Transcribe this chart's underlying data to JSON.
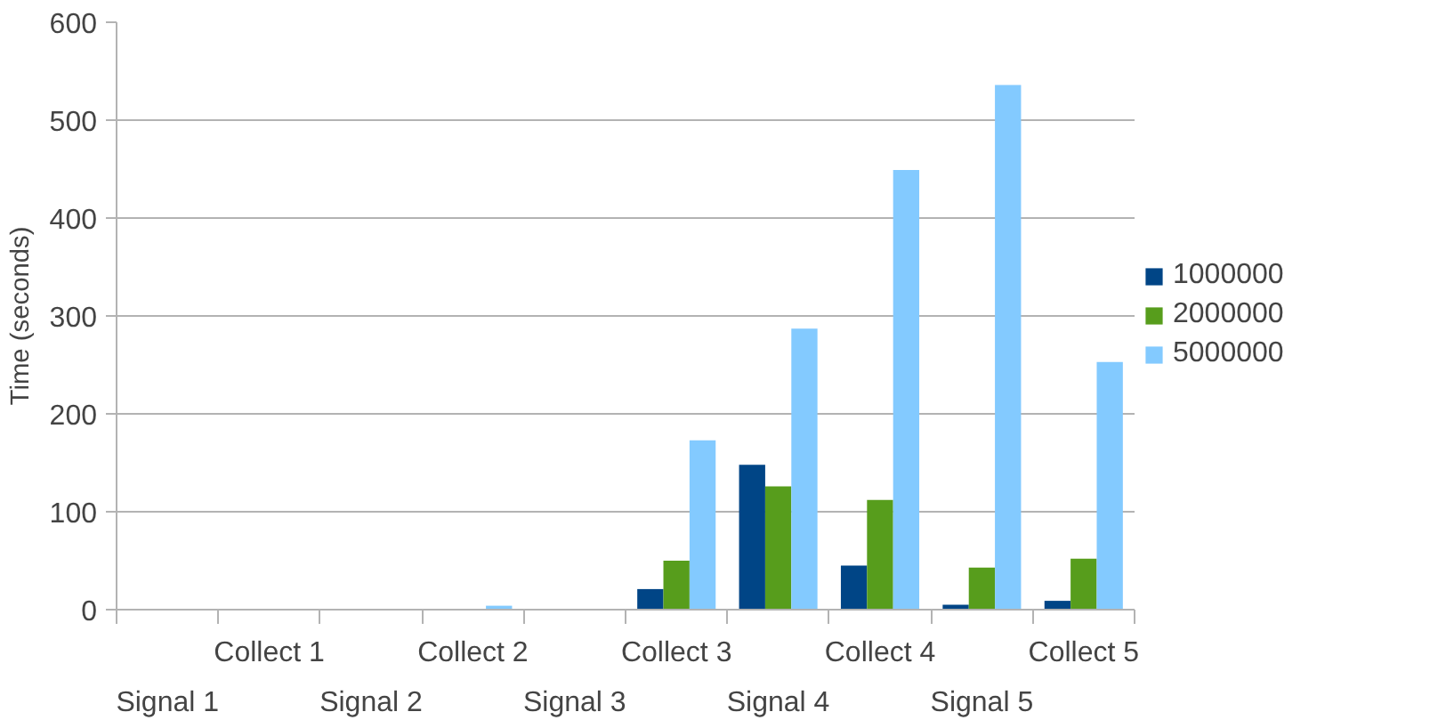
{
  "chart_data": {
    "type": "bar",
    "ylabel": "Time (seconds)",
    "categories": [
      "Signal 1",
      "Collect 1",
      "Signal 2",
      "Collect 2",
      "Signal 3",
      "Collect 3",
      "Signal 4",
      "Collect 4",
      "Signal 5",
      "Collect 5"
    ],
    "series": [
      {
        "name": "1000000",
        "color": "#004586",
        "values": [
          0,
          0,
          0,
          null,
          0,
          21,
          148,
          45,
          5,
          9
        ]
      },
      {
        "name": "2000000",
        "color": "#579d1c",
        "values": [
          0,
          0,
          0,
          null,
          null,
          50,
          126,
          112,
          43,
          52
        ]
      },
      {
        "name": "5000000",
        "color": "#83caff",
        "values": [
          0,
          0,
          0,
          4,
          null,
          173,
          287,
          449,
          536,
          253
        ]
      }
    ],
    "ylim": [
      0,
      600
    ],
    "yticks": [
      0,
      100,
      200,
      300,
      400,
      500,
      600
    ],
    "grid": "y",
    "legend": "right"
  }
}
